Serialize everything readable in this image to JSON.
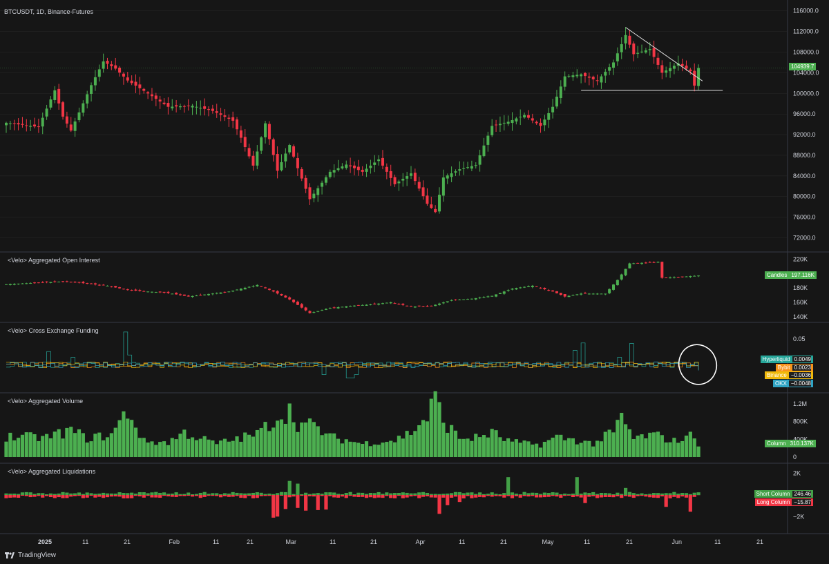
{
  "header": {
    "symbol_title": "BTCUSDT, 1D, Binance-Futures"
  },
  "panes": {
    "oi": {
      "title": "<Velo> Aggregated Open Interest",
      "badge_label": "Candles",
      "badge_value": "197.116K"
    },
    "funding": {
      "title": "<Velo> Cross Exchange Funding"
    },
    "volume": {
      "title": "<Velo> Aggregated Volume",
      "badge_label": "Column",
      "badge_value": "310.137K"
    },
    "liq": {
      "title": "<Velo> Aggregated Liquidations"
    }
  },
  "funding_badges": [
    {
      "name": "Hyperliquid",
      "value": "0.0049",
      "color": "#26a69a"
    },
    {
      "name": "Bybit",
      "value": "0.0023",
      "color": "#f7931a"
    },
    {
      "name": "Binance",
      "value": "−0.0036",
      "color": "#f0b90b"
    },
    {
      "name": "OKX",
      "value": "−0.0048",
      "color": "#2fa4c4"
    }
  ],
  "liq_badges": [
    {
      "name": "Short Column",
      "value": "246.46",
      "color": "#43a047"
    },
    {
      "name": "Long Column",
      "value": "−15.87",
      "color": "#f23645"
    }
  ],
  "price_last_label": "104939.7",
  "brand": {
    "text": "TradingView"
  },
  "colors": {
    "up": "#4caf50",
    "down": "#f23645",
    "background": "#161616",
    "grid": "#2a2a2a",
    "text": "#d1d4dc"
  },
  "chart_data": [
    {
      "type": "candlestick",
      "title": "BTCUSDT, 1D, Binance-Futures",
      "y_ticks": [
        "116000.0",
        "112000.0",
        "108000.0",
        "104000.0",
        "100000.0",
        "96000.0",
        "92000.0",
        "88000.0",
        "84000.0",
        "80000.0",
        "76000.0",
        "72000.0"
      ],
      "ylim": [
        71000,
        116500
      ],
      "x_ticks": [
        "2025",
        "11",
        "21",
        "Feb",
        "11",
        "21",
        "Mar",
        "11",
        "21",
        "Apr",
        "11",
        "21",
        "May",
        "11",
        "21",
        "Jun",
        "11",
        "21"
      ],
      "last_price": 104939.7,
      "keypoints": [
        [
          0,
          94300
        ],
        [
          8,
          93500
        ],
        [
          12,
          100600
        ],
        [
          14,
          95500
        ],
        [
          16,
          92800
        ],
        [
          21,
          101600
        ],
        [
          24,
          106200
        ],
        [
          27,
          104800
        ],
        [
          30,
          102500
        ],
        [
          34,
          100500
        ],
        [
          40,
          97400
        ],
        [
          46,
          97600
        ],
        [
          51,
          96600
        ],
        [
          56,
          94700
        ],
        [
          58,
          91400
        ],
        [
          61,
          86000
        ],
        [
          64,
          94200
        ],
        [
          67,
          85000
        ],
        [
          70,
          90000
        ],
        [
          72,
          85500
        ],
        [
          75,
          79500
        ],
        [
          80,
          84800
        ],
        [
          84,
          86200
        ],
        [
          88,
          84800
        ],
        [
          92,
          87200
        ],
        [
          96,
          82400
        ],
        [
          100,
          84500
        ],
        [
          104,
          78600
        ],
        [
          106,
          77000
        ],
        [
          108,
          83700
        ],
        [
          112,
          85300
        ],
        [
          116,
          86100
        ],
        [
          120,
          93700
        ],
        [
          124,
          94500
        ],
        [
          128,
          95800
        ],
        [
          132,
          93700
        ],
        [
          135,
          97400
        ],
        [
          138,
          103300
        ],
        [
          142,
          103700
        ],
        [
          146,
          102400
        ],
        [
          150,
          106000
        ],
        [
          153,
          111300
        ],
        [
          155,
          107600
        ],
        [
          159,
          108600
        ],
        [
          162,
          104000
        ],
        [
          166,
          105800
        ],
        [
          169,
          104300
        ],
        [
          170,
          101500
        ],
        [
          171,
          104940
        ]
      ],
      "annotations": {
        "triangle_upper": [
          [
            153,
            112800
          ],
          [
            172,
            102400
          ]
        ],
        "triangle_lower": [
          [
            142,
            100600
          ],
          [
            177,
            100600
          ]
        ]
      }
    },
    {
      "type": "candlestick",
      "title": "<Velo> Aggregated Open Interest",
      "y_ticks": [
        "220K",
        "180K",
        "160K",
        "140K"
      ],
      "ylim": [
        135000,
        227000
      ],
      "last_value": 197116,
      "keypoints": [
        [
          0,
          185000
        ],
        [
          10,
          188000
        ],
        [
          15,
          189000
        ],
        [
          20,
          186000
        ],
        [
          25,
          183000
        ],
        [
          30,
          177000
        ],
        [
          40,
          173000
        ],
        [
          45,
          168000
        ],
        [
          55,
          175000
        ],
        [
          62,
          184000
        ],
        [
          66,
          175000
        ],
        [
          70,
          164000
        ],
        [
          75,
          145000
        ],
        [
          80,
          152000
        ],
        [
          85,
          155000
        ],
        [
          90,
          157000
        ],
        [
          95,
          160000
        ],
        [
          100,
          154000
        ],
        [
          105,
          155000
        ],
        [
          110,
          163000
        ],
        [
          115,
          165000
        ],
        [
          120,
          169000
        ],
        [
          125,
          179000
        ],
        [
          130,
          183000
        ],
        [
          135,
          175000
        ],
        [
          138,
          168000
        ],
        [
          142,
          172000
        ],
        [
          148,
          172000
        ],
        [
          151,
          191000
        ],
        [
          154,
          214000
        ],
        [
          158,
          215000
        ],
        [
          161,
          216000
        ],
        [
          162,
          194000
        ],
        [
          166,
          195000
        ],
        [
          171,
          197116
        ]
      ]
    },
    {
      "type": "step-line",
      "title": "<Velo> Cross Exchange Funding",
      "y_ticks": [
        "0.05"
      ],
      "ylim": [
        -0.04,
        0.075
      ],
      "series": [
        {
          "name": "Hyperliquid",
          "color": "#26a69a",
          "last": 0.0049
        },
        {
          "name": "Bybit",
          "color": "#f7931a",
          "last": 0.0023
        },
        {
          "name": "Binance",
          "color": "#f0b90b",
          "last": -0.0036
        },
        {
          "name": "OKX",
          "color": "#2fa4c4",
          "last": -0.0048
        }
      ],
      "spikes": [
        [
          10,
          0.028
        ],
        [
          16,
          0.018
        ],
        [
          29,
          0.062
        ],
        [
          30,
          0.022
        ],
        [
          140,
          0.03
        ],
        [
          142,
          0.043
        ],
        [
          151,
          0.018
        ],
        [
          154,
          0.042
        ]
      ],
      "dips": [
        [
          84,
          -0.018
        ],
        [
          85,
          -0.018
        ],
        [
          86,
          -0.012
        ],
        [
          78,
          -0.012
        ]
      ]
    },
    {
      "type": "bar",
      "title": "<Velo> Aggregated Volume",
      "y_ticks": [
        "1.2M",
        "800K",
        "400K",
        "0"
      ],
      "ylim": [
        0,
        1400000
      ],
      "last_value": 310137,
      "keypoints": [
        [
          0,
          460000
        ],
        [
          10,
          440000
        ],
        [
          16,
          600000
        ],
        [
          20,
          420000
        ],
        [
          26,
          500000
        ],
        [
          30,
          1040000
        ],
        [
          34,
          350000
        ],
        [
          40,
          330000
        ],
        [
          44,
          550000
        ],
        [
          48,
          420000
        ],
        [
          52,
          300000
        ],
        [
          58,
          430000
        ],
        [
          62,
          520000
        ],
        [
          67,
          900000
        ],
        [
          70,
          1040000
        ],
        [
          72,
          750000
        ],
        [
          76,
          700000
        ],
        [
          80,
          450000
        ],
        [
          84,
          380000
        ],
        [
          88,
          300000
        ],
        [
          92,
          350000
        ],
        [
          96,
          380000
        ],
        [
          100,
          560000
        ],
        [
          104,
          900000
        ],
        [
          106,
          1340000
        ],
        [
          108,
          800000
        ],
        [
          112,
          430000
        ],
        [
          116,
          430000
        ],
        [
          120,
          550000
        ],
        [
          124,
          360000
        ],
        [
          128,
          300000
        ],
        [
          132,
          280000
        ],
        [
          136,
          450000
        ],
        [
          140,
          390000
        ],
        [
          145,
          300000
        ],
        [
          150,
          560000
        ],
        [
          152,
          880000
        ],
        [
          155,
          420000
        ],
        [
          160,
          500000
        ],
        [
          165,
          360000
        ],
        [
          170,
          500000
        ],
        [
          171,
          310137
        ]
      ]
    },
    {
      "type": "bar",
      "title": "<Velo> Aggregated Liquidations",
      "y_ticks": [
        "2K",
        "−2K"
      ],
      "ylim": [
        -2600,
        2300
      ],
      "series": [
        {
          "name": "Short Column",
          "color": "#43a047",
          "last": 246.46
        },
        {
          "name": "Long Column",
          "color": "#f23645",
          "last": -15.87
        }
      ],
      "short_spikes": [
        [
          70,
          1300
        ],
        [
          72,
          1050
        ],
        [
          124,
          1650
        ],
        [
          141,
          1650
        ],
        [
          153,
          650
        ]
      ],
      "long_spikes": [
        [
          66,
          -2100
        ],
        [
          67,
          -2000
        ],
        [
          69,
          -1300
        ],
        [
          72,
          -1200
        ],
        [
          74,
          -1450
        ],
        [
          77,
          -1400
        ],
        [
          79,
          -1350
        ],
        [
          107,
          -1750
        ],
        [
          109,
          -950
        ],
        [
          112,
          -650
        ],
        [
          143,
          -750
        ],
        [
          163,
          -1100
        ],
        [
          169,
          -1550
        ]
      ]
    }
  ]
}
